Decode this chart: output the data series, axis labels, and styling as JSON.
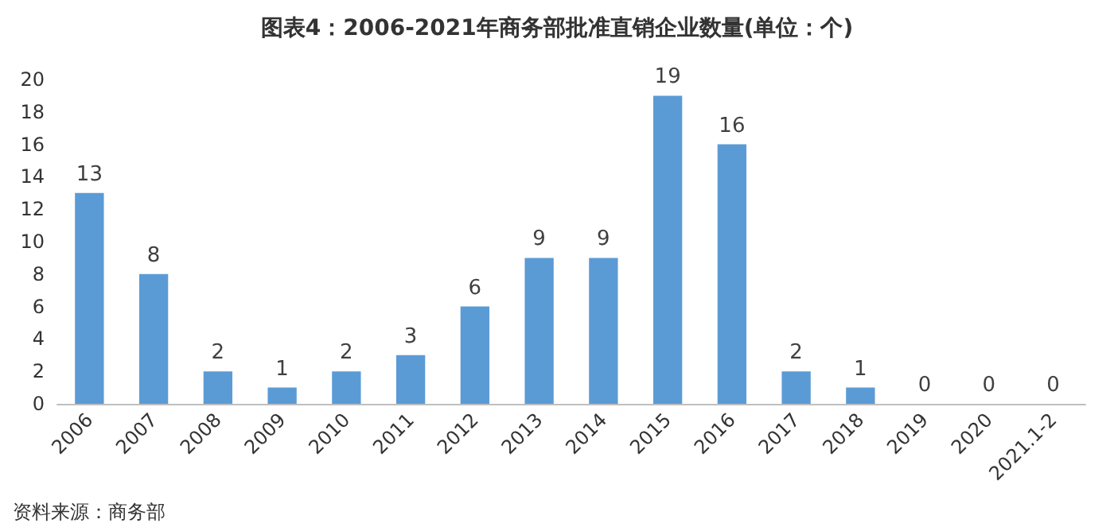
{
  "chart_data": {
    "type": "bar",
    "title": "图表4：2006-2021年商务部批准直销企业数量(单位：个)",
    "categories": [
      "2006",
      "2007",
      "2008",
      "2009",
      "2010",
      "2011",
      "2012",
      "2013",
      "2014",
      "2015",
      "2016",
      "2017",
      "2018",
      "2019",
      "2020",
      "2021.1-2"
    ],
    "values": [
      13,
      8,
      2,
      1,
      2,
      3,
      6,
      9,
      9,
      19,
      16,
      2,
      1,
      0,
      0,
      0
    ],
    "color": "#5b9bd5",
    "ylim": [
      0,
      20
    ],
    "yticks": [
      0,
      2,
      4,
      6,
      8,
      10,
      12,
      14,
      16,
      18,
      20
    ],
    "grid": false,
    "data_labels": true,
    "annotations": [
      "资料来源：商务部"
    ]
  }
}
